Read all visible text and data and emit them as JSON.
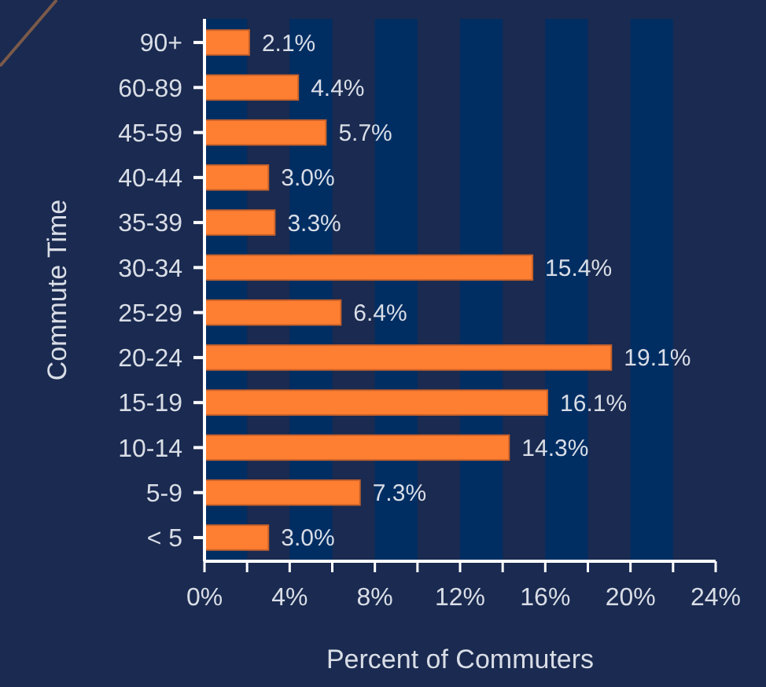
{
  "chart_data": {
    "type": "bar",
    "orientation": "horizontal",
    "xlabel": "Percent of Commuters",
    "ylabel": "Commute Time",
    "categories": [
      "90+",
      "60-89",
      "45-59",
      "40-44",
      "35-39",
      "30-34",
      "25-29",
      "20-24",
      "15-19",
      "10-14",
      "5-9",
      "< 5"
    ],
    "values": [
      2.1,
      4.4,
      5.7,
      3.0,
      3.3,
      15.4,
      6.4,
      19.1,
      16.1,
      14.3,
      7.3,
      3.0
    ],
    "value_labels": [
      "2.1%",
      "4.4%",
      "5.7%",
      "3.0%",
      "3.3%",
      "15.4%",
      "6.4%",
      "19.1%",
      "16.1%",
      "14.3%",
      "7.3%",
      "3.0%"
    ],
    "color": "#ff7f32",
    "xlim": [
      0,
      24
    ],
    "xticks": [
      {
        "value": 0,
        "label": "0%"
      },
      {
        "value": 2,
        "label": null
      },
      {
        "value": 4,
        "label": "4%"
      },
      {
        "value": 6,
        "label": null
      },
      {
        "value": 8,
        "label": "8%"
      },
      {
        "value": 10,
        "label": null
      },
      {
        "value": 12,
        "label": "12%"
      },
      {
        "value": 14,
        "label": null
      },
      {
        "value": 16,
        "label": "16%"
      },
      {
        "value": 18,
        "label": null
      },
      {
        "value": 20,
        "label": "20%"
      },
      {
        "value": 22,
        "label": null
      },
      {
        "value": 24,
        "label": "24%"
      }
    ],
    "bands": [
      {
        "axis": "x",
        "from": 0,
        "to": 2,
        "color": "#002e63"
      },
      {
        "axis": "x",
        "from": 4,
        "to": 6,
        "color": "#002e63"
      },
      {
        "axis": "x",
        "from": 8,
        "to": 10,
        "color": "#002e63"
      },
      {
        "axis": "x",
        "from": 12,
        "to": 14,
        "color": "#002e63"
      },
      {
        "axis": "x",
        "from": 16,
        "to": 18,
        "color": "#002e63"
      },
      {
        "axis": "x",
        "from": 20,
        "to": 22,
        "color": "#002e63"
      }
    ],
    "grid": false
  }
}
